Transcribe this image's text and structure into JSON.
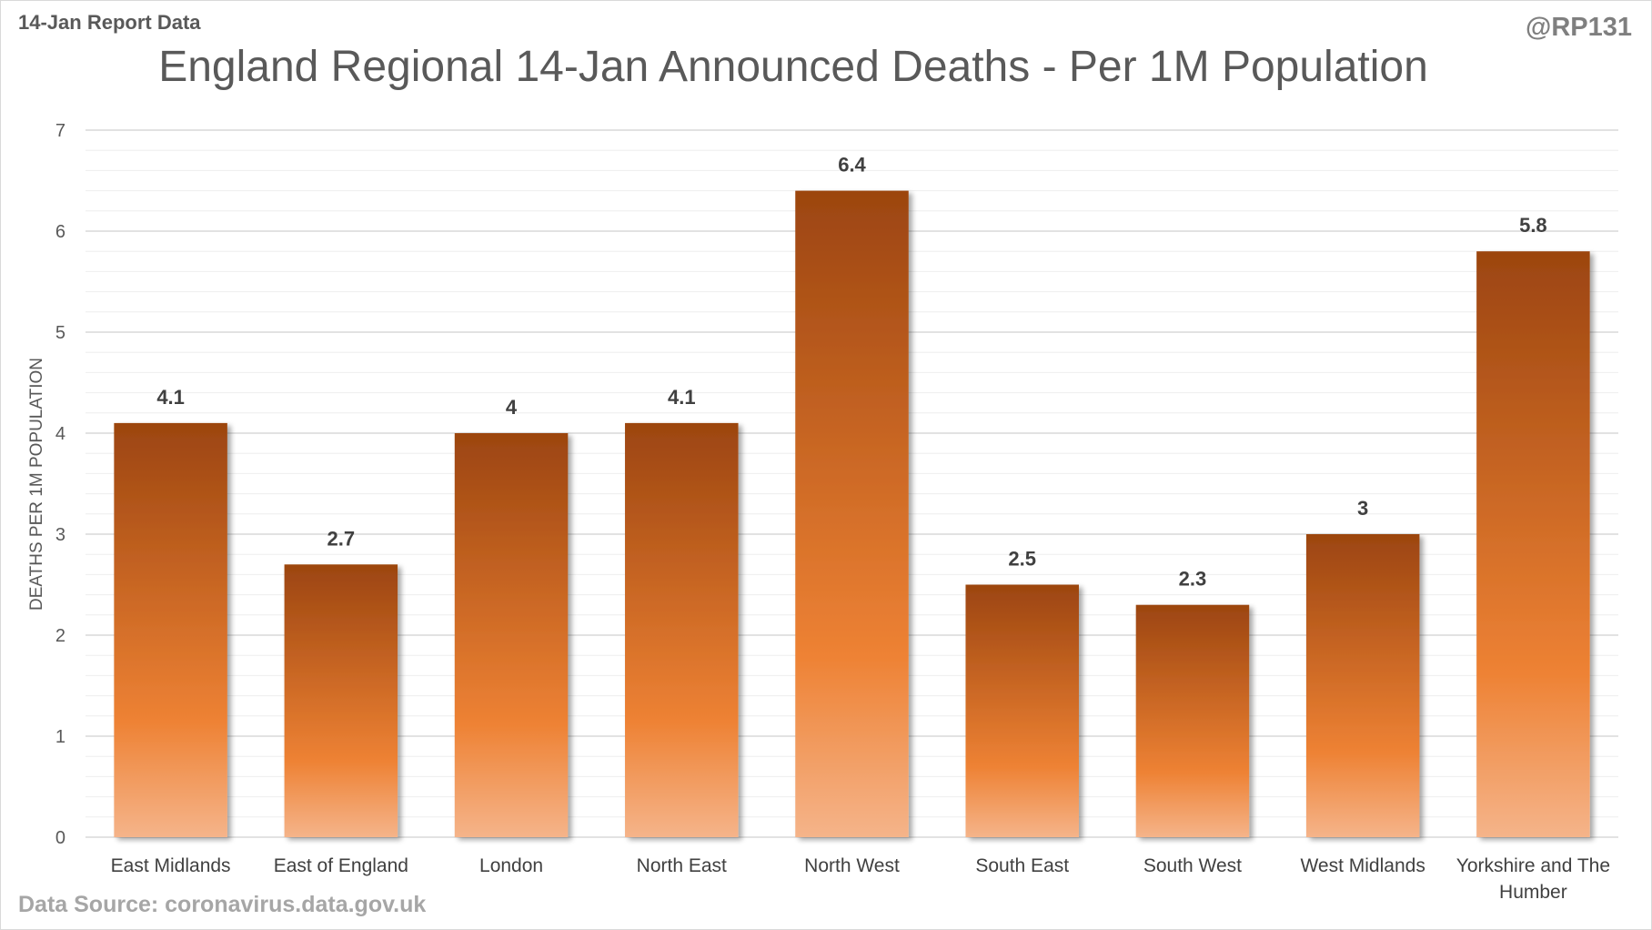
{
  "header": {
    "report_label": "14-Jan Report Data",
    "handle": "@RP131"
  },
  "footer": {
    "source": "Data Source: coronavirus.data.gov.uk"
  },
  "colors": {
    "bar_top": "#9c4510",
    "bar_mid": "#ee8234",
    "bar_bottom": "#f5b48a",
    "gridline": "#d9d9d9"
  },
  "chart_data": {
    "type": "bar",
    "title": "England Regional 14-Jan Announced Deaths - Per 1M Population",
    "xlabel": "",
    "ylabel": "DEATHS PER 1M POPULATION",
    "ylim": [
      0,
      7
    ],
    "yticks": [
      0,
      1,
      2,
      3,
      4,
      5,
      6,
      7
    ],
    "grid": true,
    "minor_grid": true,
    "categories": [
      [
        "East Midlands"
      ],
      [
        "East of England"
      ],
      [
        "London"
      ],
      [
        "North East"
      ],
      [
        "North West"
      ],
      [
        "South East"
      ],
      [
        "South West"
      ],
      [
        "West Midlands"
      ],
      [
        "Yorkshire and The",
        "Humber"
      ]
    ],
    "values": [
      4.1,
      2.7,
      4,
      4.1,
      6.4,
      2.5,
      2.3,
      3,
      5.8
    ],
    "data_labels": [
      "4.1",
      "2.7",
      "4",
      "4.1",
      "6.4",
      "2.5",
      "2.3",
      "3",
      "5.8"
    ]
  }
}
